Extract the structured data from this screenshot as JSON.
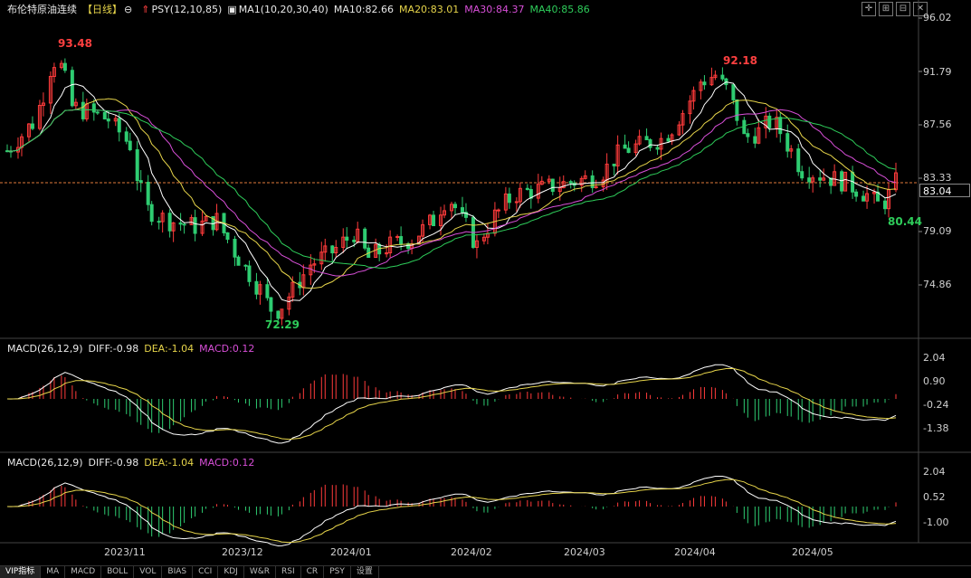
{
  "main_header": {
    "title": "布伦特原油连续",
    "period": "【日线】",
    "psy": "PSY(12,10,85)",
    "ma": "MA1(10,20,30,40)",
    "ma10": "MA10:82.66",
    "ma20": "MA20:83.01",
    "ma30": "MA30:84.37",
    "ma40": "MA40:85.86"
  },
  "price_axis": [
    "96.02",
    "91.79",
    "87.56",
    "83.33",
    "79.09",
    "74.86"
  ],
  "current_price": "83.04",
  "annotations": {
    "high1": "93.48",
    "high2": "92.18",
    "low1": "72.29",
    "low2": "80.44"
  },
  "macd1": {
    "label": "MACD(26,12,9)",
    "diff": "DIFF:-0.98",
    "dea": "DEA:-1.04",
    "macd": "MACD:0.12",
    "axis": [
      "2.04",
      "0.90",
      "-0.24",
      "-1.38"
    ]
  },
  "macd2": {
    "label": "MACD(26,12,9)",
    "diff": "DIFF:-0.98",
    "dea": "DEA:-1.04",
    "macd": "MACD:0.12",
    "axis": [
      "2.04",
      "0.52",
      "-1.00"
    ]
  },
  "x_axis": [
    "2023/11",
    "2023/12",
    "2024/01",
    "2024/02",
    "2024/03",
    "2024/04",
    "2024/05"
  ],
  "toolbar": [
    "VIP指标",
    "MA",
    "MACD",
    "BOLL",
    "VOL",
    "BIAS",
    "CCI",
    "KDJ",
    "W&R",
    "RSI",
    "CR",
    "PSY",
    "设置"
  ],
  "colors": {
    "up": "#ff3b3b",
    "down": "#2ecc71",
    "ma10": "#ffffff",
    "ma20": "#e6d44a",
    "ma30": "#d84fd8",
    "ma40": "#2ecc5a"
  }
}
